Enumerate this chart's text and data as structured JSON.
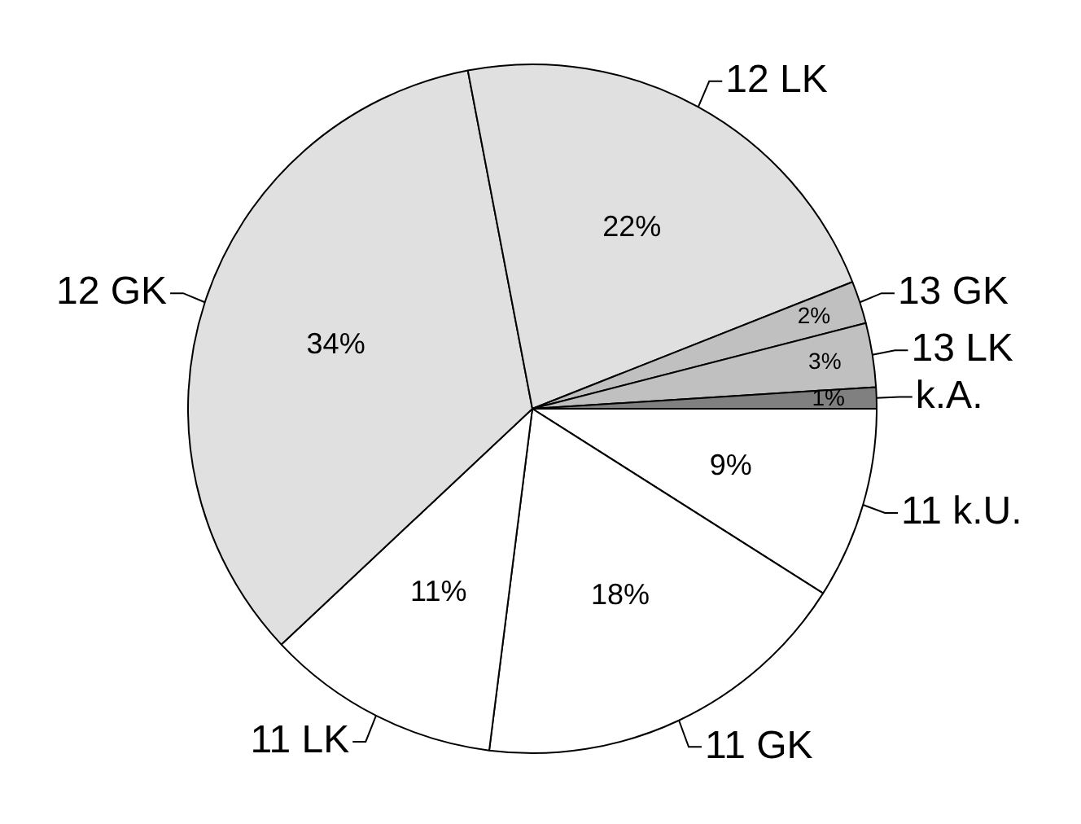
{
  "chart_data": {
    "type": "pie",
    "categories": [
      "11 k.U.",
      "11 GK",
      "11 LK",
      "12 GK",
      "12 LK",
      "13 GK",
      "13 LK",
      "k.A."
    ],
    "values": [
      9,
      18,
      11,
      34,
      22,
      2,
      3,
      1
    ],
    "value_labels": [
      "9%",
      "18%",
      "11%",
      "34%",
      "22%",
      "2%",
      "3%",
      "1%"
    ],
    "colors": [
      "#ffffff",
      "#ffffff",
      "#ffffff",
      "#e0e0e0",
      "#e0e0e0",
      "#c0c0c0",
      "#c0c0c0",
      "#808080"
    ],
    "legend": false
  }
}
